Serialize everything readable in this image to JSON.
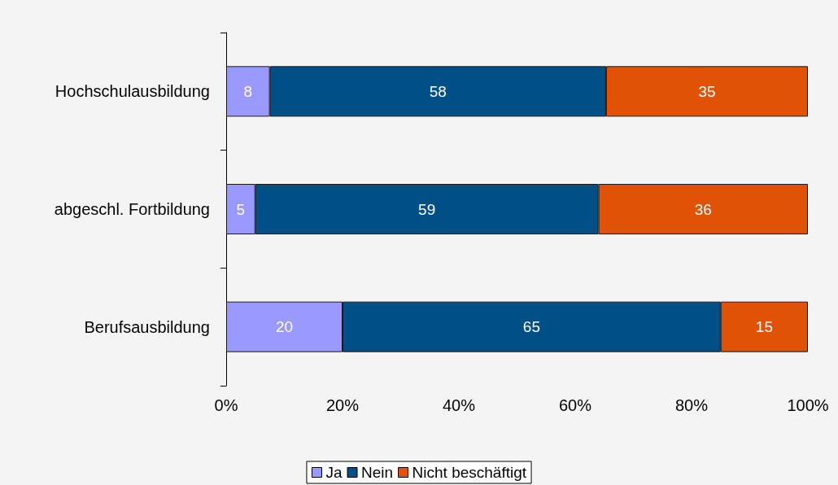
{
  "chart_data": {
    "type": "bar",
    "orientation": "horizontal",
    "stacked": true,
    "categories": [
      "Hochschulausbildung",
      "abgeschl. Fortbildung",
      "Berufsausbildung"
    ],
    "series": [
      {
        "name": "Ja",
        "color": "#9999ff",
        "values": [
          7.5,
          5,
          20
        ],
        "value_labels": [
          "8",
          "5",
          "20"
        ]
      },
      {
        "name": "Nein",
        "color": "#004f86",
        "values": [
          57.8,
          59,
          65
        ],
        "value_labels": [
          "58",
          "59",
          "65"
        ]
      },
      {
        "name": "Nicht beschäftigt",
        "color": "#e05206",
        "values": [
          34.7,
          36,
          15
        ],
        "value_labels": [
          "35",
          "36",
          "15"
        ]
      }
    ],
    "xlim": [
      0,
      100
    ],
    "xticks": [
      {
        "value": 0,
        "label": "0%"
      },
      {
        "value": 20,
        "label": "20%"
      },
      {
        "value": 40,
        "label": "40%"
      },
      {
        "value": 60,
        "label": "60%"
      },
      {
        "value": 80,
        "label": "80%"
      },
      {
        "value": 100,
        "label": "100%"
      }
    ],
    "grid": false,
    "legend": "bottom"
  }
}
